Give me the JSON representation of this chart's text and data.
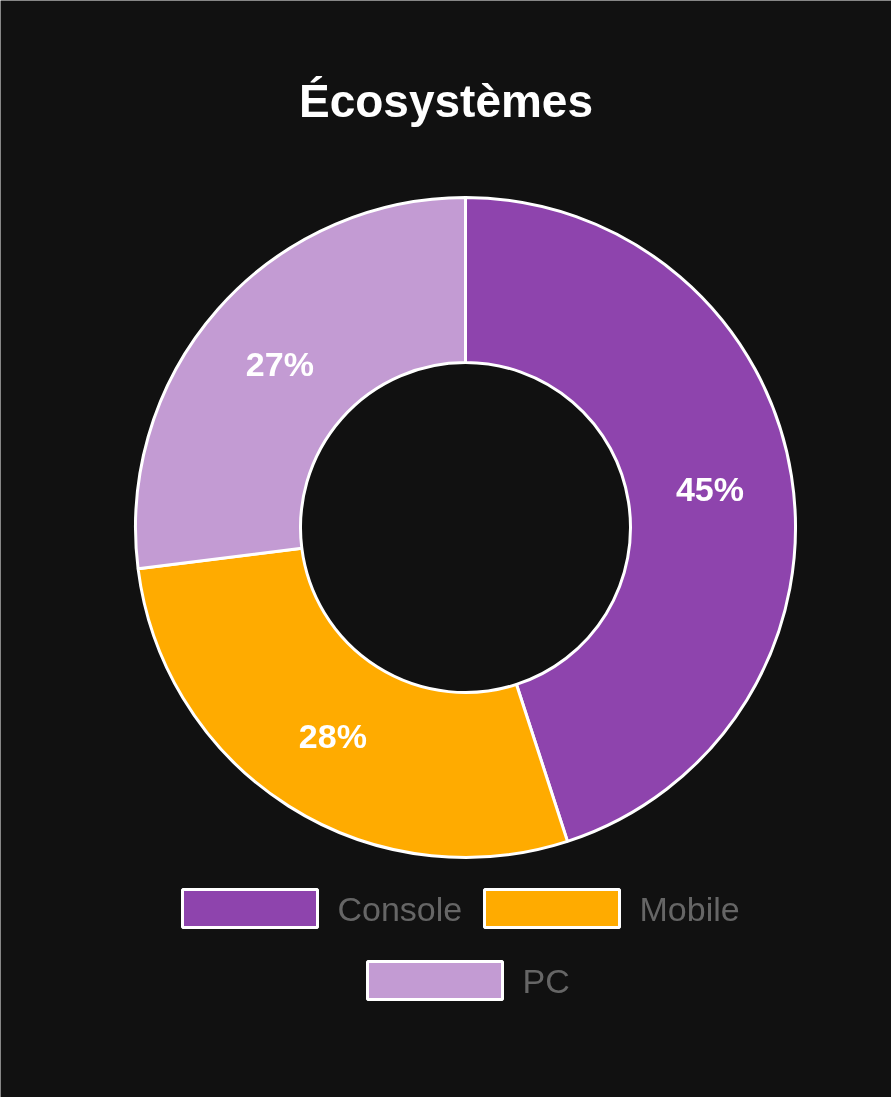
{
  "chart_data": {
    "type": "donut",
    "title": "Écosystèmes",
    "categories": [
      "Console",
      "Mobile",
      "PC"
    ],
    "values": [
      45,
      28,
      27
    ],
    "colors": [
      "#8e44ad",
      "#ffab00",
      "#c39bd3"
    ],
    "value_labels": [
      "45%",
      "28%",
      "27%"
    ],
    "legend": "bottom"
  }
}
